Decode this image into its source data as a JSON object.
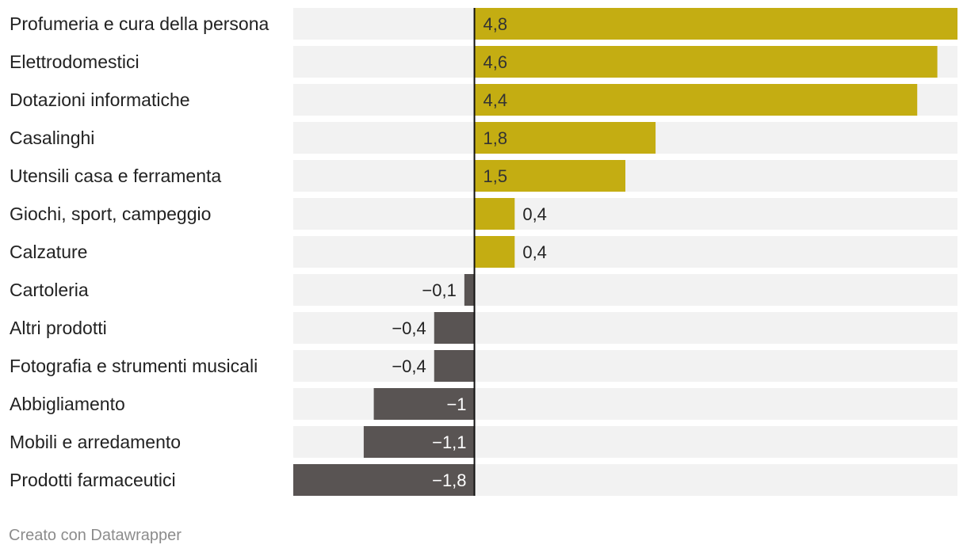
{
  "chart_data": {
    "type": "bar",
    "orientation": "horizontal",
    "categories": [
      "Profumeria e cura della persona",
      "Elettrodomestici",
      "Dotazioni informatiche",
      "Casalinghi",
      "Utensili casa e ferramenta",
      "Giochi, sport, campeggio",
      "Calzature",
      "Cartoleria",
      "Altri prodotti",
      "Fotografia e strumenti musicali",
      "Abbigliamento",
      "Mobili e arredamento",
      "Prodotti farmaceutici"
    ],
    "values": [
      4.8,
      4.6,
      4.4,
      1.8,
      1.5,
      0.4,
      0.4,
      -0.1,
      -0.4,
      -0.4,
      -1,
      -1.1,
      -1.8
    ],
    "value_labels": [
      "4,8",
      "4,6",
      "4,4",
      "1,8",
      "1,5",
      "0,4",
      "0,4",
      "−0,1",
      "−0,4",
      "−0,4",
      "−1",
      "−1,1",
      "−1,8"
    ],
    "xlim": [
      -1.8,
      4.8
    ],
    "colors": {
      "positive": "#c4ad12",
      "negative": "#595453",
      "background_bar": "#f2f2f2",
      "axis": "#111111"
    },
    "grid": false,
    "legend": "none"
  },
  "footer": {
    "credit": "Creato con Datawrapper"
  }
}
